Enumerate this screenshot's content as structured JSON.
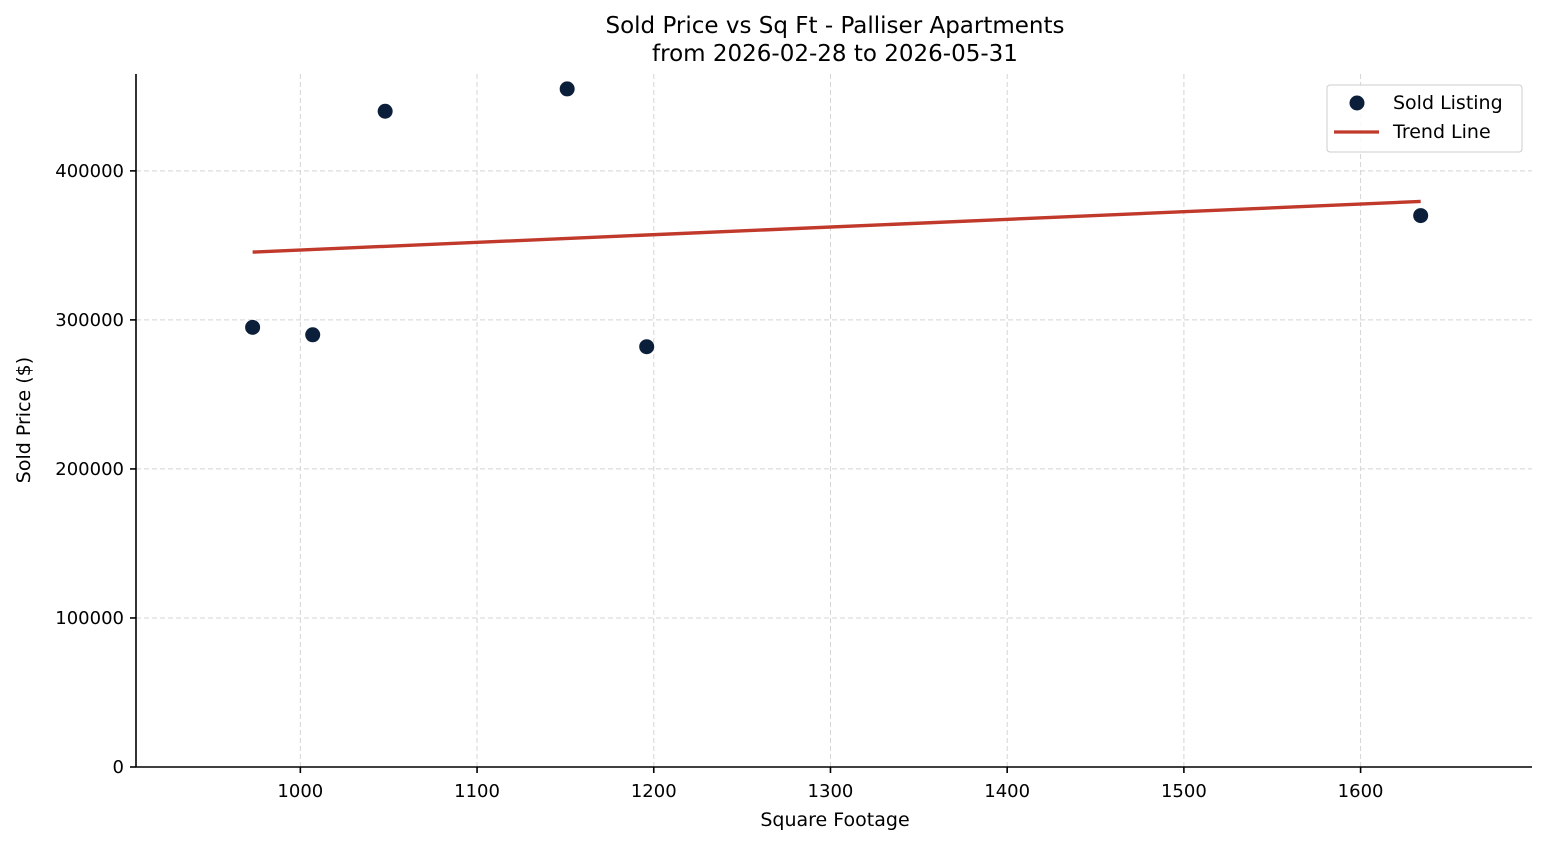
{
  "chart_data": {
    "type": "scatter",
    "title": "Sold Price vs Sq Ft - Palliser Apartments",
    "subtitle": "from 2026-02-28 to 2026-05-31",
    "xlabel": "Square Footage",
    "ylabel": "Sold Price ($)",
    "xlim": [
      907,
      1697
    ],
    "ylim": [
      0,
      465000
    ],
    "xticks": [
      1000,
      1100,
      1200,
      1300,
      1400,
      1500,
      1600
    ],
    "yticks": [
      0,
      100000,
      200000,
      300000,
      400000
    ],
    "xtick_labels": [
      "1000",
      "1100",
      "1200",
      "1300",
      "1400",
      "1500",
      "1600"
    ],
    "ytick_labels": [
      "0",
      "100000",
      "200000",
      "300000",
      "400000"
    ],
    "grid": true,
    "legend_position": "top-right",
    "series": [
      {
        "name": "Sold Listing",
        "kind": "scatter",
        "color": "#0b1f3a",
        "x": [
          973,
          1007,
          1048,
          1151,
          1196,
          1634
        ],
        "y": [
          295000,
          290000,
          440000,
          455000,
          282000,
          370000
        ]
      },
      {
        "name": "Trend Line",
        "kind": "line",
        "color": "#c0392b",
        "x": [
          973,
          1634
        ],
        "y": [
          345500,
          379500
        ]
      }
    ]
  }
}
